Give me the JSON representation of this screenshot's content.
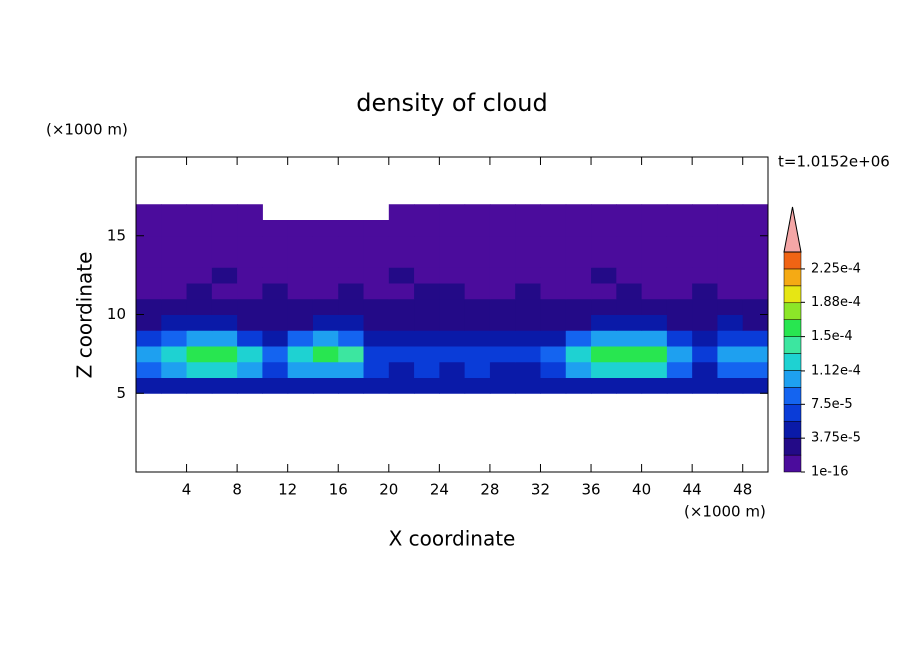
{
  "chart_data": {
    "type": "contour",
    "title": "density of cloud",
    "time_label": "t=1.0152e+06",
    "xlabel": "X coordinate",
    "ylabel": "Z coordinate",
    "x_unit": "(×1000 m)",
    "y_unit": "(×1000 m)",
    "xlim": [
      0,
      50
    ],
    "ylim": [
      0,
      20
    ],
    "xticks": [
      4,
      8,
      12,
      16,
      20,
      24,
      28,
      32,
      36,
      40,
      44,
      48
    ],
    "yticks": [
      5,
      10,
      15
    ],
    "x": [
      1,
      3,
      5,
      7,
      9,
      11,
      13,
      15,
      17,
      19,
      21,
      23,
      25,
      27,
      29,
      31,
      33,
      35,
      37,
      39,
      41,
      43,
      45,
      47,
      49
    ],
    "z": [
      5.5,
      6.5,
      7.5,
      8.5,
      9.5,
      10.5,
      11.5,
      12.5,
      13.5,
      14.5,
      15.5,
      16.5
    ],
    "values": [
      [
        4e-05,
        4e-05,
        5e-05,
        5e-05,
        4e-05,
        4e-05,
        5e-05,
        5e-05,
        4e-05,
        4e-05,
        4e-05,
        4e-05,
        4e-05,
        4e-05,
        4e-05,
        4e-05,
        4e-05,
        5e-05,
        5e-05,
        5e-05,
        5e-05,
        4e-05,
        4e-05,
        4e-05,
        4e-05
      ],
      [
        9e-05,
        0.00011,
        0.00012,
        0.00012,
        0.0001,
        7e-05,
        0.0001,
        0.00011,
        0.0001,
        6e-05,
        5e-05,
        6e-05,
        5e-05,
        6e-05,
        5e-05,
        5e-05,
        7e-05,
        0.00011,
        0.00012,
        0.00012,
        0.00012,
        9e-05,
        5e-05,
        8e-05,
        9e-05
      ],
      [
        0.00011,
        0.00013,
        0.000155,
        0.00016,
        0.00012,
        8e-05,
        0.00013,
        0.00016,
        0.00014,
        7e-05,
        6e-05,
        7e-05,
        6e-05,
        7e-05,
        6e-05,
        6e-05,
        8e-05,
        0.00013,
        0.00015,
        0.000165,
        0.00015,
        0.00011,
        6e-05,
        0.0001,
        0.00011
      ],
      [
        7e-05,
        9e-05,
        0.00011,
        0.0001,
        7e-05,
        5e-05,
        8e-05,
        0.0001,
        9e-05,
        5e-05,
        4e-05,
        5e-05,
        4e-05,
        5e-05,
        4e-05,
        4e-05,
        5e-05,
        8e-05,
        0.0001,
        0.00011,
        0.0001,
        7e-05,
        4e-05,
        6e-05,
        7e-05
      ],
      [
        3e-05,
        4e-05,
        4e-05,
        4e-05,
        3e-05,
        3e-05,
        3e-05,
        4e-05,
        4e-05,
        3e-05,
        3e-05,
        3e-05,
        3e-05,
        3e-05,
        3e-05,
        3e-05,
        3e-05,
        3e-05,
        4e-05,
        4e-05,
        4e-05,
        3e-05,
        3e-05,
        4e-05,
        3e-05
      ],
      [
        2e-05,
        2e-05,
        2e-05,
        3e-05,
        2e-05,
        2e-05,
        2e-05,
        2e-05,
        3e-05,
        2e-05,
        2e-05,
        2e-05,
        3e-05,
        2e-05,
        2e-05,
        2e-05,
        2e-05,
        2e-05,
        2e-05,
        3e-05,
        2e-05,
        2e-05,
        2e-05,
        2e-05,
        2e-05
      ],
      [
        1e-05,
        1e-05,
        2e-05,
        1e-05,
        1e-05,
        2e-05,
        1e-05,
        1e-05,
        2e-05,
        1e-05,
        1e-05,
        2e-05,
        2e-05,
        1e-05,
        1e-05,
        2e-05,
        1e-05,
        1e-05,
        1e-05,
        2e-05,
        1e-05,
        1e-05,
        2e-05,
        1e-05,
        1e-05
      ],
      [
        1e-05,
        1e-05,
        1e-05,
        2e-05,
        1e-05,
        1e-05,
        1e-05,
        1e-05,
        1e-05,
        1e-05,
        2e-05,
        1e-05,
        1e-05,
        1e-05,
        1e-05,
        1e-05,
        1e-05,
        1e-05,
        2e-05,
        1e-05,
        1e-05,
        1e-05,
        1e-05,
        1e-05,
        1e-05
      ],
      [
        1e-05,
        1e-05,
        1e-05,
        1e-05,
        1e-05,
        1e-05,
        1e-05,
        1e-05,
        1e-05,
        1e-05,
        1e-05,
        1e-05,
        1e-05,
        1e-05,
        1e-05,
        1e-05,
        1e-05,
        1e-05,
        1e-05,
        1e-05,
        1e-05,
        1e-05,
        1e-05,
        1e-05,
        1e-05
      ],
      [
        1e-05,
        1e-05,
        1e-05,
        1e-05,
        1e-05,
        1e-05,
        1e-05,
        1e-05,
        1e-05,
        1e-05,
        1e-05,
        1e-05,
        1e-05,
        1e-05,
        1e-05,
        1e-05,
        1e-05,
        1e-05,
        1e-05,
        1e-05,
        1e-05,
        1e-05,
        1e-05,
        1e-05,
        1e-05
      ],
      [
        1e-05,
        1e-05,
        1e-05,
        1e-05,
        1e-05,
        1e-05,
        1e-05,
        1e-05,
        1e-05,
        1e-05,
        1e-05,
        1e-05,
        1e-05,
        1e-05,
        1e-05,
        1e-05,
        1e-05,
        1e-05,
        1e-05,
        1e-05,
        1e-05,
        1e-05,
        1e-05,
        1e-05,
        1e-05
      ],
      [
        1e-05,
        1e-05,
        1e-05,
        1e-05,
        1e-05,
        null,
        null,
        null,
        null,
        null,
        1e-05,
        1e-05,
        1e-05,
        1e-05,
        1e-05,
        1e-05,
        1e-05,
        1e-05,
        1e-05,
        1e-05,
        1e-05,
        1e-05,
        1e-05,
        1e-05,
        1e-05
      ]
    ],
    "levels": [
      1e-16,
      1.875e-05,
      3.75e-05,
      5.625e-05,
      7.5e-05,
      9.375e-05,
      0.0001125,
      0.00013125,
      0.00015,
      0.00016875,
      0.0001875,
      0.00020625,
      0.000225,
      0.00024375
    ],
    "colors": [
      "#4b0c9c",
      "#230a87",
      "#0a1aa8",
      "#0a3cd8",
      "#1464f0",
      "#1ea0f0",
      "#1ed2d2",
      "#3ce6a0",
      "#28e650",
      "#8ce628",
      "#e6e614",
      "#f5aa14",
      "#f06414"
    ],
    "extend_color": "#f4a6a6",
    "colorbar_ticks": [
      1e-16,
      {
        "value": 3.75e-05,
        "label": "3.75e-5"
      },
      {
        "value": 7.5e-05,
        "label": "7.5e-5"
      },
      {
        "value": 0.000112,
        "label": "1.12e-4"
      },
      {
        "value": 0.00015,
        "label": "1.5e-4"
      },
      {
        "value": 0.000188,
        "label": "1.88e-4"
      },
      {
        "value": 0.000225,
        "label": "2.25e-4"
      }
    ]
  }
}
